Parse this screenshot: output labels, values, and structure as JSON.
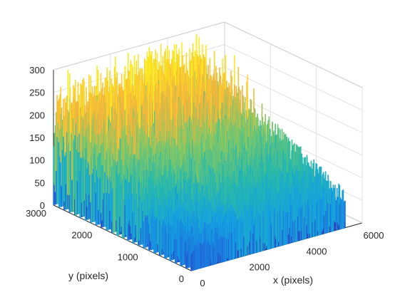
{
  "chart_data": {
    "type": "surface",
    "title": "",
    "xlabel": "x (pixels)",
    "ylabel": "y (pixels)",
    "zlabel": "",
    "x_ticks": [
      "0",
      "2000",
      "4000",
      "6000"
    ],
    "y_ticks": [
      "0",
      "1000",
      "2000",
      "3000"
    ],
    "z_ticks": [
      "0",
      "50",
      "100",
      "150",
      "200",
      "250",
      "300"
    ],
    "xlim": [
      0,
      6000
    ],
    "ylim": [
      0,
      3000
    ],
    "zlim": [
      0,
      300
    ],
    "colormap": "parula",
    "colors": {
      "low": "#2a3cb8",
      "mid_low": "#1a9ee0",
      "mid": "#2ab8a0",
      "mid_high": "#8cc860",
      "high_orange": "#f6b63c",
      "top_yellow": "#f9f520"
    },
    "surface_profile": {
      "description_x": [
        0,
        1000,
        2000,
        3000,
        4000,
        5000,
        5400
      ],
      "front_edge_height_at_x": [
        40,
        55,
        95,
        90,
        85,
        90,
        60
      ],
      "back_edge_height_at_x": [
        190,
        200,
        205,
        210,
        215,
        200,
        150
      ],
      "peak_height": 290
    },
    "grid": true
  }
}
